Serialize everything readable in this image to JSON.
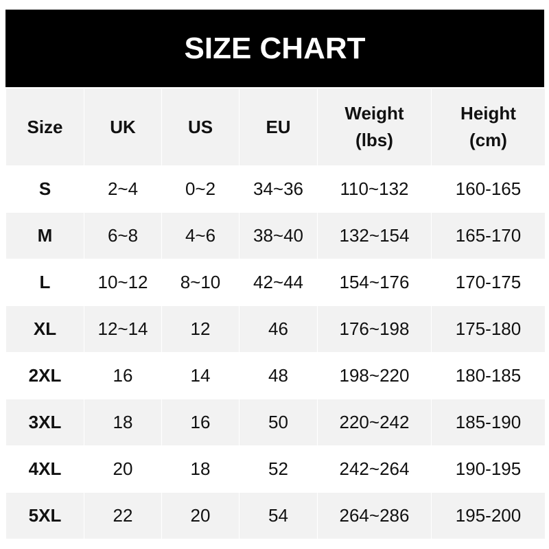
{
  "title": "SIZE CHART",
  "columns": [
    "Size",
    "UK",
    "US",
    "EU",
    "Weight\n(lbs)",
    "Height\n(cm)"
  ],
  "rows": [
    [
      "S",
      "2~4",
      "0~2",
      "34~36",
      "110~132",
      "160-165"
    ],
    [
      "M",
      "6~8",
      "4~6",
      "38~40",
      "132~154",
      "165-170"
    ],
    [
      "L",
      "10~12",
      "8~10",
      "42~44",
      "154~176",
      "170-175"
    ],
    [
      "XL",
      "12~14",
      "12",
      "46",
      "176~198",
      "175-180"
    ],
    [
      "2XL",
      "16",
      "14",
      "48",
      "198~220",
      "180-185"
    ],
    [
      "3XL",
      "18",
      "16",
      "50",
      "220~242",
      "185-190"
    ],
    [
      "4XL",
      "20",
      "18",
      "52",
      "242~264",
      "190-195"
    ],
    [
      "5XL",
      "22",
      "20",
      "54",
      "264~286",
      "195-200"
    ]
  ],
  "colors": {
    "title_bg": "#000000",
    "header_bg": "#f2f2f2",
    "stripe_bg": "#f2f2f2"
  }
}
